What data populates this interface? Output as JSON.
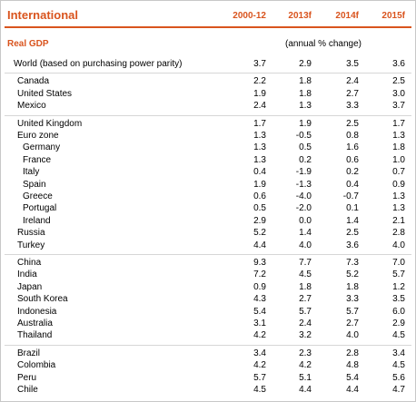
{
  "header": {
    "title": "International",
    "columns": [
      "2000-12",
      "2013f",
      "2014f",
      "2015f"
    ]
  },
  "section": {
    "title": "Real GDP",
    "unit": "(annual % change)"
  },
  "table": {
    "groups": [
      {
        "rows": [
          {
            "label": "World (based on purchasing power parity)",
            "values": [
              "3.7",
              "2.9",
              "3.5",
              "3.6"
            ]
          }
        ]
      },
      {
        "rows": [
          {
            "label": "Canada",
            "values": [
              "2.2",
              "1.8",
              "2.4",
              "2.5"
            ]
          },
          {
            "label": "United States",
            "values": [
              "1.9",
              "1.8",
              "2.7",
              "3.0"
            ]
          },
          {
            "label": "Mexico",
            "values": [
              "2.4",
              "1.3",
              "3.3",
              "3.7"
            ]
          }
        ]
      },
      {
        "rows": [
          {
            "label": "United Kingdom",
            "values": [
              "1.7",
              "1.9",
              "2.5",
              "1.7"
            ]
          },
          {
            "label": "Euro zone",
            "values": [
              "1.3",
              "-0.5",
              "0.8",
              "1.3"
            ],
            "members": [
              {
                "label": "Germany",
                "values": [
                  "1.3",
                  "0.5",
                  "1.6",
                  "1.8"
                ]
              },
              {
                "label": "France",
                "values": [
                  "1.3",
                  "0.2",
                  "0.6",
                  "1.0"
                ]
              },
              {
                "label": "Italy",
                "values": [
                  "0.4",
                  "-1.9",
                  "0.2",
                  "0.7"
                ]
              },
              {
                "label": "Spain",
                "values": [
                  "1.9",
                  "-1.3",
                  "0.4",
                  "0.9"
                ]
              },
              {
                "label": "Greece",
                "values": [
                  "0.6",
                  "-4.0",
                  "-0.7",
                  "1.3"
                ]
              },
              {
                "label": "Portugal",
                "values": [
                  "0.5",
                  "-2.0",
                  "0.1",
                  "1.3"
                ]
              },
              {
                "label": "Ireland",
                "values": [
                  "2.9",
                  "0.0",
                  "1.4",
                  "2.1"
                ]
              }
            ]
          },
          {
            "label": "Russia",
            "values": [
              "5.2",
              "1.4",
              "2.5",
              "2.8"
            ]
          },
          {
            "label": "Turkey",
            "values": [
              "4.4",
              "4.0",
              "3.6",
              "4.0"
            ]
          }
        ]
      },
      {
        "rows": [
          {
            "label": "China",
            "values": [
              "9.3",
              "7.7",
              "7.3",
              "7.0"
            ]
          },
          {
            "label": "India",
            "values": [
              "7.2",
              "4.5",
              "5.2",
              "5.7"
            ]
          },
          {
            "label": "Japan",
            "values": [
              "0.9",
              "1.8",
              "1.8",
              "1.2"
            ]
          },
          {
            "label": "South Korea",
            "values": [
              "4.3",
              "2.7",
              "3.3",
              "3.5"
            ]
          },
          {
            "label": "Indonesia",
            "values": [
              "5.4",
              "5.7",
              "5.7",
              "6.0"
            ]
          },
          {
            "label": "Australia",
            "values": [
              "3.1",
              "2.4",
              "2.7",
              "2.9"
            ]
          },
          {
            "label": "Thailand",
            "values": [
              "4.2",
              "3.2",
              "4.0",
              "4.5"
            ]
          }
        ]
      },
      {
        "rows": [
          {
            "label": "Brazil",
            "values": [
              "3.4",
              "2.3",
              "2.8",
              "3.4"
            ]
          },
          {
            "label": "Colombia",
            "values": [
              "4.2",
              "4.2",
              "4.8",
              "4.5"
            ]
          },
          {
            "label": "Peru",
            "values": [
              "5.7",
              "5.1",
              "5.4",
              "5.6"
            ]
          },
          {
            "label": "Chile",
            "values": [
              "4.5",
              "4.4",
              "4.4",
              "4.7"
            ]
          }
        ]
      }
    ]
  }
}
